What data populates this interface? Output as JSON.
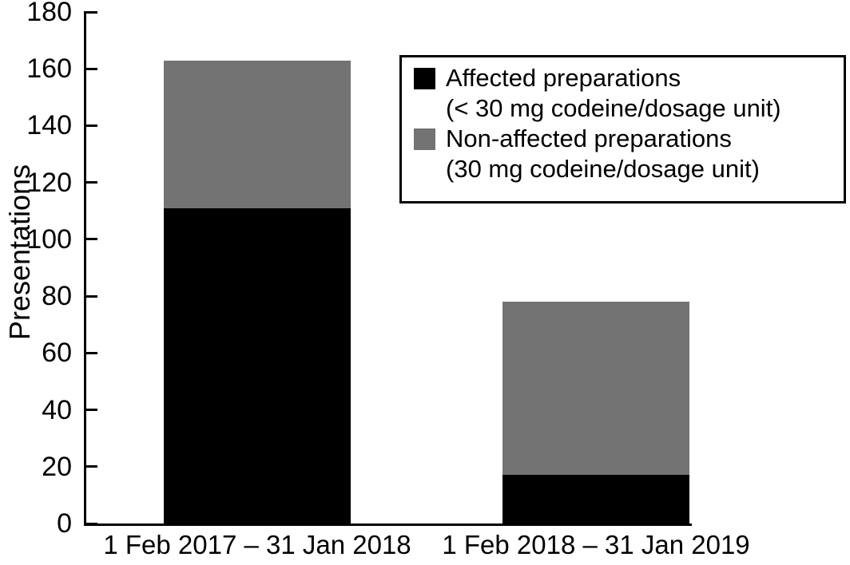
{
  "figure": {
    "background": "#ffffff",
    "axis_color": "#000000"
  },
  "chart_data": {
    "type": "bar",
    "stacked": true,
    "title": "",
    "xlabel": "",
    "ylabel": "Presentations",
    "ylim": [
      0,
      180
    ],
    "yticks": [
      0,
      20,
      40,
      60,
      80,
      100,
      120,
      140,
      160,
      180
    ],
    "grid": false,
    "legend_position": "upper right",
    "categories": [
      "1 Feb 2017 – 31 Jan 2018",
      "1 Feb 2018 – 31 Jan 2019"
    ],
    "series": [
      {
        "name": "Affected preparations (< 30 mg codeine/dosage unit)",
        "color": "#000000",
        "values": [
          111,
          17
        ]
      },
      {
        "name": "Non-affected preparations (30 mg codeine/dosage unit)",
        "color": "#737373",
        "values": [
          52,
          61
        ]
      }
    ]
  },
  "legend": {
    "items": [
      {
        "swatch_color": "#000000",
        "line1": "Affected preparations",
        "line2": "(< 30 mg codeine/dosage unit)"
      },
      {
        "swatch_color": "#737373",
        "line1": "Non-affected preparations",
        "line2": "(30 mg codeine/dosage unit)"
      }
    ]
  }
}
